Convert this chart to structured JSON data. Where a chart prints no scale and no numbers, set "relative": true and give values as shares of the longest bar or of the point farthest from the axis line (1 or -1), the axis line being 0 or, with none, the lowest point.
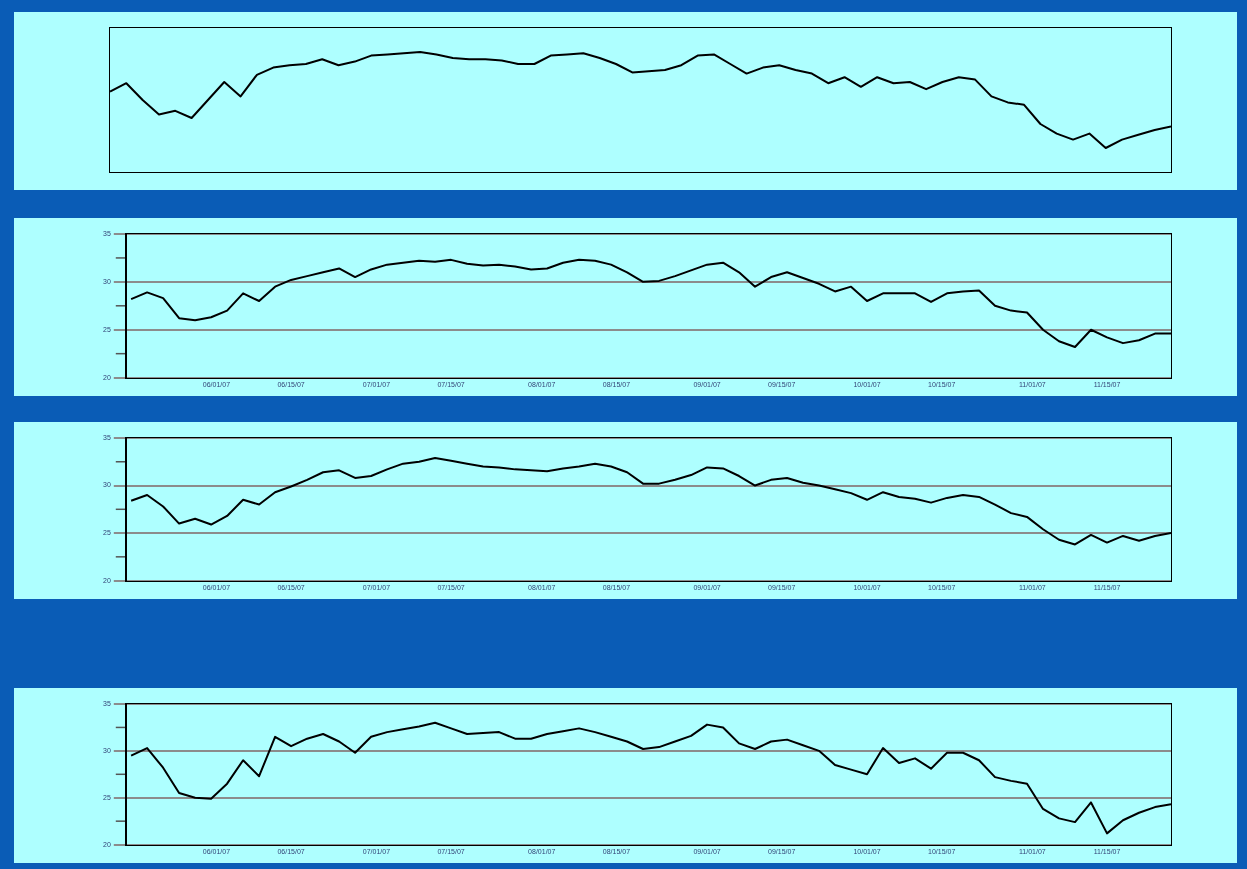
{
  "chart_data": [
    {
      "type": "line",
      "relative": true,
      "marker": "none",
      "line_style": "solid",
      "legend": false,
      "categories": [
        null,
        null,
        null,
        null,
        null,
        null,
        null,
        null,
        null,
        null,
        null,
        null,
        null,
        null,
        null,
        null,
        null,
        null,
        null,
        null,
        null,
        null,
        null,
        null,
        null,
        null,
        null,
        null,
        null,
        null,
        null,
        null,
        null,
        null,
        null,
        null,
        null,
        null,
        null,
        null,
        null,
        null,
        null,
        null,
        null,
        null,
        null,
        null,
        null,
        null,
        null,
        null,
        null,
        null,
        null,
        null,
        null,
        null,
        null,
        null,
        null,
        null,
        null,
        null,
        null,
        null
      ],
      "series": [
        {
          "color": "#000000",
          "values": [
            0.67,
            0.74,
            0.6,
            0.48,
            0.51,
            0.45,
            0.6,
            0.75,
            0.63,
            0.81,
            0.87,
            0.89,
            0.9,
            0.94,
            0.89,
            0.92,
            0.97,
            0.98,
            0.99,
            1,
            0.98,
            0.95,
            0.94,
            0.94,
            0.93,
            0.9,
            0.9,
            0.97,
            0.98,
            0.99,
            0.95,
            0.9,
            0.83,
            0.84,
            0.85,
            0.89,
            0.97,
            0.98,
            0.9,
            0.82,
            0.87,
            0.89,
            0.85,
            0.82,
            0.74,
            0.79,
            0.71,
            0.79,
            0.74,
            0.75,
            0.69,
            0.75,
            0.79,
            0.77,
            0.63,
            0.58,
            0.56,
            0.4,
            0.32,
            0.27,
            0.32,
            0.2,
            0.27,
            0.31,
            0.35,
            0.38
          ]
        }
      ]
    },
    {
      "type": "line",
      "grid": "y",
      "marker": "none",
      "line_style": "solid",
      "legend": false,
      "x": [
        "--05-16",
        "--05-19",
        "--05-22",
        "--05-25",
        "--05-28",
        "--05-31",
        "--06-03",
        "--06-06",
        "--06-09",
        "--06-12",
        "--06-15",
        "--06-18",
        "--06-21",
        "--06-24",
        "--06-27",
        "--06-30",
        "--07-03",
        "--07-06",
        "--07-09",
        "--07-12",
        "--07-15",
        "--07-18",
        "--07-21",
        "--07-24",
        "--07-27",
        "--07-30",
        "--08-02",
        "--08-05",
        "--08-08",
        "--08-11",
        "--08-14",
        "--08-17",
        "--08-20",
        "--08-23",
        "--08-26",
        "--08-29",
        "--09-01",
        "--09-04",
        "--09-07",
        "--09-10",
        "--09-13",
        "--09-16",
        "--09-19",
        "--09-22",
        "--09-25",
        "--09-28",
        "--10-01",
        "--10-04",
        "--10-07",
        "--10-10",
        "--10-13",
        "--10-16",
        "--10-19",
        "--10-22",
        "--10-25",
        "--10-28",
        "--10-31",
        "--11-03",
        "--11-06",
        "--11-09",
        "--11-12",
        "--11-15",
        "--11-18",
        "--11-21",
        "--11-24",
        "--11-27"
      ],
      "series": [
        {
          "color": "#000000",
          "values": [
            28.2,
            28.9,
            28.3,
            26.2,
            26.0,
            26.3,
            27.0,
            28.8,
            28.0,
            29.5,
            30.2,
            30.6,
            31.0,
            31.4,
            30.5,
            31.3,
            31.8,
            32.0,
            32.2,
            32.1,
            32.3,
            31.9,
            31.7,
            31.8,
            31.6,
            31.3,
            31.4,
            32.0,
            32.3,
            32.2,
            31.8,
            31.0,
            30.0,
            30.1,
            30.6,
            31.2,
            31.8,
            32.0,
            31.0,
            29.5,
            30.5,
            31.0,
            30.4,
            29.8,
            29.0,
            29.5,
            28.0,
            28.8,
            28.8,
            28.8,
            27.9,
            28.8,
            29.0,
            29.1,
            27.5,
            27.0,
            26.8,
            25.0,
            23.8,
            23.2,
            25.0,
            24.2,
            23.6,
            23.9,
            24.6,
            24.6
          ]
        }
      ],
      "xlim": [
        "--05-15",
        "--11-27"
      ],
      "xticks": [
        {
          "value": "--06-01",
          "label": "06/01/07"
        },
        {
          "value": "--06-15",
          "label": "06/15/07"
        },
        {
          "value": "--07-01",
          "label": "07/01/07"
        },
        {
          "value": "--07-15",
          "label": "07/15/07"
        },
        {
          "value": "--08-01",
          "label": "08/01/07"
        },
        {
          "value": "--08-15",
          "label": "08/15/07"
        },
        {
          "value": "--09-01",
          "label": "09/01/07"
        },
        {
          "value": "--09-15",
          "label": "09/15/07"
        },
        {
          "value": "--10-01",
          "label": "10/01/07"
        },
        {
          "value": "--10-15",
          "label": "10/15/07"
        },
        {
          "value": "--11-01",
          "label": "11/01/07"
        },
        {
          "value": "--11-15",
          "label": "11/15/07"
        }
      ],
      "ylim": [
        20,
        35
      ],
      "yticks": [
        20,
        {
          "value": 22.5,
          "label": null
        },
        25,
        {
          "value": 27.5,
          "label": null
        },
        30,
        {
          "value": 32.5,
          "label": null
        },
        35
      ]
    },
    {
      "type": "line",
      "grid": "y",
      "marker": "none",
      "line_style": "solid",
      "legend": false,
      "x": [
        "--05-16",
        "--05-19",
        "--05-22",
        "--05-25",
        "--05-28",
        "--05-31",
        "--06-03",
        "--06-06",
        "--06-09",
        "--06-12",
        "--06-15",
        "--06-18",
        "--06-21",
        "--06-24",
        "--06-27",
        "--06-30",
        "--07-03",
        "--07-06",
        "--07-09",
        "--07-12",
        "--07-15",
        "--07-18",
        "--07-21",
        "--07-24",
        "--07-27",
        "--07-30",
        "--08-02",
        "--08-05",
        "--08-08",
        "--08-11",
        "--08-14",
        "--08-17",
        "--08-20",
        "--08-23",
        "--08-26",
        "--08-29",
        "--09-01",
        "--09-04",
        "--09-07",
        "--09-10",
        "--09-13",
        "--09-16",
        "--09-19",
        "--09-22",
        "--09-25",
        "--09-28",
        "--10-01",
        "--10-04",
        "--10-07",
        "--10-10",
        "--10-13",
        "--10-16",
        "--10-19",
        "--10-22",
        "--10-25",
        "--10-28",
        "--10-31",
        "--11-03",
        "--11-06",
        "--11-09",
        "--11-12",
        "--11-15",
        "--11-18",
        "--11-21",
        "--11-24",
        "--11-27"
      ],
      "series": [
        {
          "color": "#000000",
          "values": [
            28.4,
            29.0,
            27.8,
            26.0,
            26.5,
            25.9,
            26.8,
            28.5,
            28.0,
            29.3,
            29.9,
            30.6,
            31.4,
            31.6,
            30.8,
            31.0,
            31.7,
            32.3,
            32.5,
            32.9,
            32.6,
            32.3,
            32.0,
            31.9,
            31.7,
            31.6,
            31.5,
            31.8,
            32.0,
            32.3,
            32.0,
            31.4,
            30.2,
            30.2,
            30.6,
            31.1,
            31.9,
            31.8,
            31.0,
            30.0,
            30.6,
            30.8,
            30.3,
            30.0,
            29.6,
            29.2,
            28.5,
            29.3,
            28.8,
            28.6,
            28.2,
            28.7,
            29.0,
            28.8,
            28.0,
            27.1,
            26.7,
            25.4,
            24.3,
            23.8,
            24.8,
            24.0,
            24.7,
            24.2,
            24.7,
            25.0
          ]
        }
      ],
      "xlim": [
        "--05-15",
        "--11-27"
      ],
      "xticks": [
        {
          "value": "--06-01",
          "label": "06/01/07"
        },
        {
          "value": "--06-15",
          "label": "06/15/07"
        },
        {
          "value": "--07-01",
          "label": "07/01/07"
        },
        {
          "value": "--07-15",
          "label": "07/15/07"
        },
        {
          "value": "--08-01",
          "label": "08/01/07"
        },
        {
          "value": "--08-15",
          "label": "08/15/07"
        },
        {
          "value": "--09-01",
          "label": "09/01/07"
        },
        {
          "value": "--09-15",
          "label": "09/15/07"
        },
        {
          "value": "--10-01",
          "label": "10/01/07"
        },
        {
          "value": "--10-15",
          "label": "10/15/07"
        },
        {
          "value": "--11-01",
          "label": "11/01/07"
        },
        {
          "value": "--11-15",
          "label": "11/15/07"
        }
      ],
      "ylim": [
        20,
        35
      ],
      "yticks": [
        20,
        {
          "value": 22.5,
          "label": null
        },
        25,
        {
          "value": 27.5,
          "label": null
        },
        30,
        {
          "value": 32.5,
          "label": null
        },
        35
      ]
    },
    {
      "type": "line",
      "grid": "y",
      "marker": "none",
      "line_style": "solid",
      "legend": false,
      "x": [
        "--05-16",
        "--05-19",
        "--05-22",
        "--05-25",
        "--05-28",
        "--05-31",
        "--06-03",
        "--06-06",
        "--06-09",
        "--06-12",
        "--06-15",
        "--06-18",
        "--06-21",
        "--06-24",
        "--06-27",
        "--06-30",
        "--07-03",
        "--07-06",
        "--07-09",
        "--07-12",
        "--07-15",
        "--07-18",
        "--07-21",
        "--07-24",
        "--07-27",
        "--07-30",
        "--08-02",
        "--08-05",
        "--08-08",
        "--08-11",
        "--08-14",
        "--08-17",
        "--08-20",
        "--08-23",
        "--08-26",
        "--08-29",
        "--09-01",
        "--09-04",
        "--09-07",
        "--09-10",
        "--09-13",
        "--09-16",
        "--09-19",
        "--09-22",
        "--09-25",
        "--09-28",
        "--10-01",
        "--10-04",
        "--10-07",
        "--10-10",
        "--10-13",
        "--10-16",
        "--10-19",
        "--10-22",
        "--10-25",
        "--10-28",
        "--10-31",
        "--11-03",
        "--11-06",
        "--11-09",
        "--11-12",
        "--11-15",
        "--11-18",
        "--11-21",
        "--11-24",
        "--11-27"
      ],
      "series": [
        {
          "color": "#000000",
          "values": [
            29.5,
            30.3,
            28.2,
            25.5,
            25.0,
            24.9,
            26.5,
            29.0,
            27.3,
            31.5,
            30.5,
            31.3,
            31.8,
            31.0,
            29.8,
            31.5,
            32.0,
            32.3,
            32.6,
            33.0,
            32.4,
            31.8,
            31.9,
            32.0,
            31.3,
            31.3,
            31.8,
            32.1,
            32.4,
            32.0,
            31.5,
            31.0,
            30.2,
            30.4,
            31.0,
            31.6,
            32.8,
            32.5,
            30.8,
            30.2,
            31.0,
            31.2,
            30.6,
            30.0,
            28.5,
            28.0,
            27.5,
            30.3,
            28.7,
            29.2,
            28.1,
            29.8,
            29.8,
            29.0,
            27.2,
            26.8,
            26.5,
            23.8,
            22.8,
            22.4,
            24.5,
            21.2,
            22.6,
            23.4,
            24.0,
            24.3
          ]
        }
      ],
      "xlim": [
        "--05-15",
        "--11-27"
      ],
      "xticks": [
        {
          "value": "--06-01",
          "label": "06/01/07"
        },
        {
          "value": "--06-15",
          "label": "06/15/07"
        },
        {
          "value": "--07-01",
          "label": "07/01/07"
        },
        {
          "value": "--07-15",
          "label": "07/15/07"
        },
        {
          "value": "--08-01",
          "label": "08/01/07"
        },
        {
          "value": "--08-15",
          "label": "08/15/07"
        },
        {
          "value": "--09-01",
          "label": "09/01/07"
        },
        {
          "value": "--09-15",
          "label": "09/15/07"
        },
        {
          "value": "--10-01",
          "label": "10/01/07"
        },
        {
          "value": "--10-15",
          "label": "10/15/07"
        },
        {
          "value": "--11-01",
          "label": "11/01/07"
        },
        {
          "value": "--11-15",
          "label": "11/15/07"
        }
      ],
      "ylim": [
        20,
        35
      ],
      "yticks": [
        20,
        {
          "value": 22.5,
          "label": null
        },
        25,
        {
          "value": 27.5,
          "label": null
        },
        30,
        {
          "value": 32.5,
          "label": null
        },
        35
      ]
    }
  ]
}
